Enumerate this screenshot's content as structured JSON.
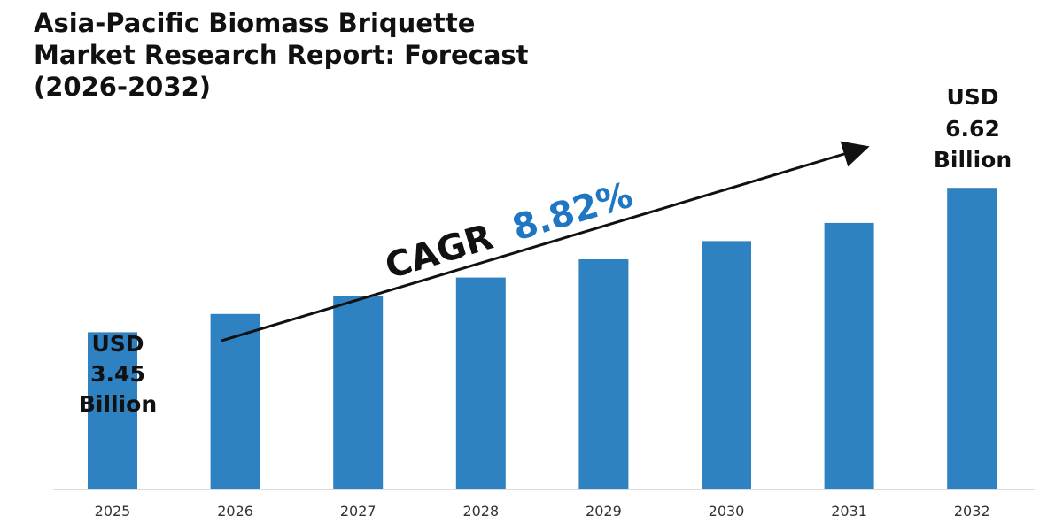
{
  "chart_data": {
    "type": "bar",
    "title": "Asia-Pacific Biomass Briquette Market Research Report: Forecast (2026-2032)",
    "categories": [
      "2025",
      "2026",
      "2027",
      "2028",
      "2029",
      "2030",
      "2031",
      "2032"
    ],
    "values": [
      3.45,
      3.85,
      4.25,
      4.65,
      5.05,
      5.45,
      5.85,
      6.62
    ],
    "ylabel": "",
    "xlabel": "",
    "ylim": [
      0,
      8.8
    ],
    "grid": false,
    "bar_color": "#2E82C2",
    "callouts": {
      "start": {
        "line1": "USD",
        "line2": "3.45",
        "line3": "Billion"
      },
      "end": {
        "line1": "USD",
        "line2": "6.62",
        "line3": "Billion"
      }
    },
    "cagr": {
      "label": "CAGR",
      "value": "8.82%",
      "value_color": "#1F77C4"
    }
  }
}
